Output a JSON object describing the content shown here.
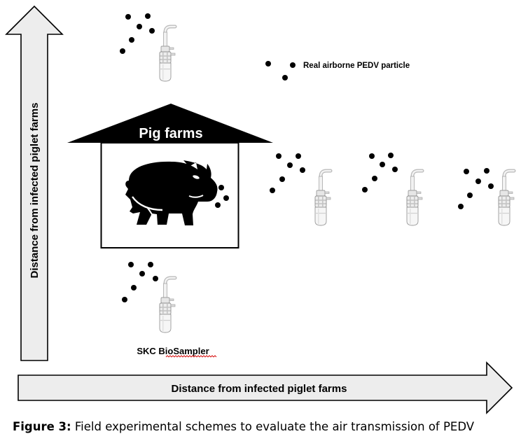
{
  "diagram": {
    "vertical_axis_label": "Distance from infected piglet farms",
    "horizontal_axis_label": "Distance from infected piglet farms",
    "farm_label": "Pig farms",
    "particle_legend_label": "Real airborne PEDV particle",
    "sampler_label": "SKC BioSampler",
    "icons": {
      "pig": "pig-silhouette-icon",
      "sampler": "biosampler-icon",
      "particle": "particle-dot-icon"
    },
    "colors": {
      "arrow_fill": "#ededed",
      "ink": "#000000",
      "spellcheck_underline": "#d40000"
    }
  },
  "caption": {
    "prefix": "Figure 3:",
    "text": " Field experimental schemes to evaluate the air transmission of PEDV"
  }
}
